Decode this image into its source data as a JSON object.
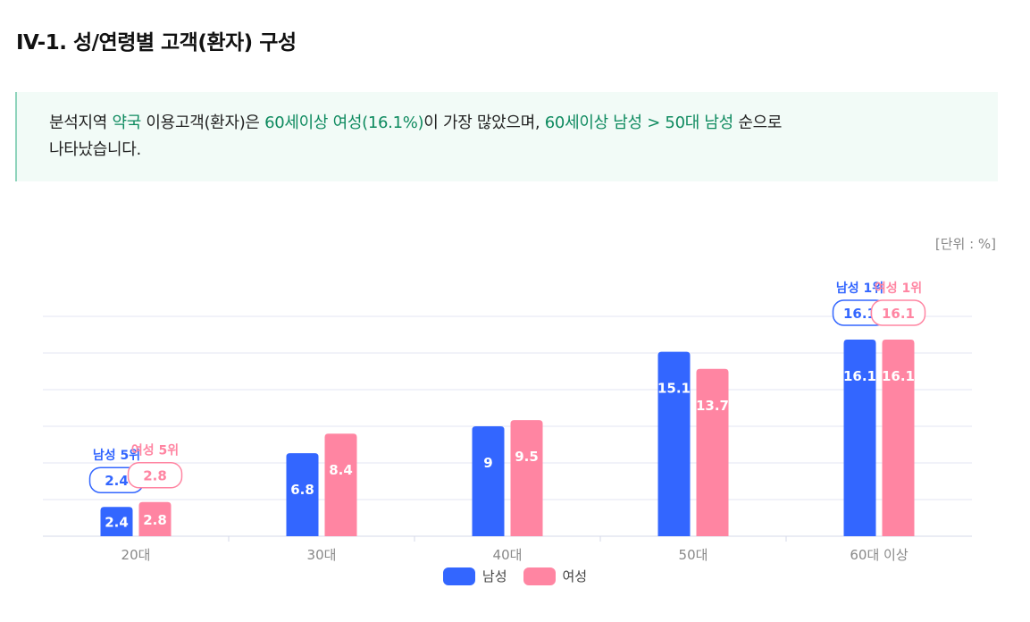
{
  "page": {
    "title": "IV-1. 성/연령별 고객(환자) 구성",
    "unit_label": "[단위 : %]"
  },
  "summary": {
    "t1": "분석지역 ",
    "region": "약국",
    "t2": " 이용고객(환자)은 ",
    "top": "60세이상 여성(16.1%)",
    "t3": "이 가장 많았으며, ",
    "rank": "60세이상 남성 > 50대 남성",
    "t4": " 순으로",
    "t5": "나타났습니다."
  },
  "colors": {
    "male": "#3366ff",
    "female": "#ff85a2",
    "grid": "#e3e6f3",
    "axis_text": "#888888"
  },
  "chart_data": {
    "type": "bar",
    "categories": [
      "20대",
      "30대",
      "40대",
      "50대",
      "60대 이상"
    ],
    "series": [
      {
        "name": "남성",
        "values": [
          2.4,
          6.8,
          9,
          15.1,
          16.1
        ]
      },
      {
        "name": "여성",
        "values": [
          2.8,
          8.4,
          9.5,
          13.7,
          16.1
        ]
      }
    ],
    "ylim": [
      0,
      18
    ],
    "grid": true,
    "legend_position": "bottom",
    "annotations": [
      {
        "series": "남성",
        "category": "20대",
        "label": "남성 5위",
        "value": "2.4"
      },
      {
        "series": "여성",
        "category": "20대",
        "label": "여성 5위",
        "value": "2.8"
      },
      {
        "series": "남성",
        "category": "60대 이상",
        "label": "남성 1위",
        "value": "16.1"
      },
      {
        "series": "여성",
        "category": "60대 이상",
        "label": "여성 1위",
        "value": "16.1"
      }
    ]
  }
}
